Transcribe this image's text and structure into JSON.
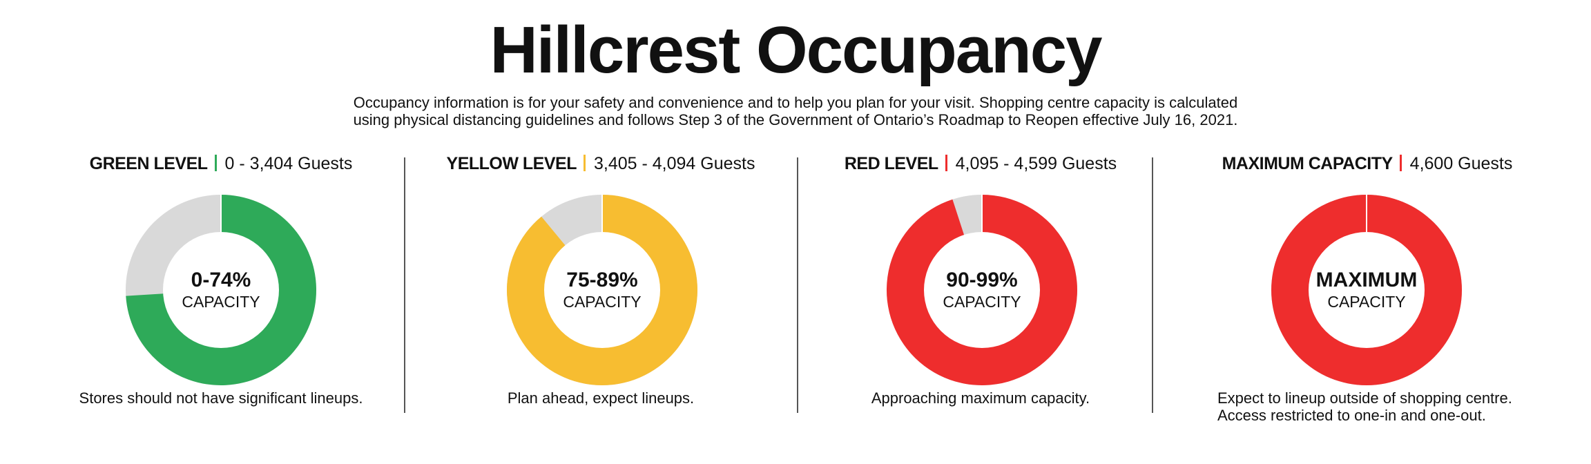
{
  "title": "Hillcrest Occupancy",
  "subtitle": {
    "line1": "Occupancy information is for your safety and convenience and to help you plan for your visit. Shopping centre capacity is calculated",
    "line2": "using physical distancing guidelines and follows Step 3 of the Government of Ontario’s Roadmap to Reopen effective July 16, 2021."
  },
  "levels": [
    {
      "level": "GREEN LEVEL",
      "range": "0 - 3,404 Guests",
      "accent": "#2eaa59",
      "fill_fraction": 0.74,
      "center_main": "0-74%",
      "center_sub": "CAPACITY",
      "description": [
        "Stores should not have significant lineups."
      ]
    },
    {
      "level": "YELLOW LEVEL",
      "range": "3,405 - 4,094 Guests",
      "accent": "#f7bd31",
      "fill_fraction": 0.89,
      "center_main": "75-89%",
      "center_sub": "CAPACITY",
      "description": [
        "Plan ahead, expect lineups."
      ]
    },
    {
      "level": "RED LEVEL",
      "range": "4,095 - 4,599 Guests",
      "accent": "#ee2d2d",
      "fill_fraction": 0.95,
      "center_main": "90-99%",
      "center_sub": "CAPACITY",
      "description": [
        "Approaching maximum capacity."
      ]
    },
    {
      "level": "MAXIMUM CAPACITY",
      "range": "4,600 Guests",
      "accent": "#ee2d2d",
      "fill_fraction": 1.0,
      "center_main": "MAXIMUM",
      "center_sub": "CAPACITY",
      "description": [
        "Expect to lineup outside of  shopping centre.",
        "Access restricted to one-in and one-out."
      ]
    }
  ],
  "track_color": "#d9d9d9"
}
